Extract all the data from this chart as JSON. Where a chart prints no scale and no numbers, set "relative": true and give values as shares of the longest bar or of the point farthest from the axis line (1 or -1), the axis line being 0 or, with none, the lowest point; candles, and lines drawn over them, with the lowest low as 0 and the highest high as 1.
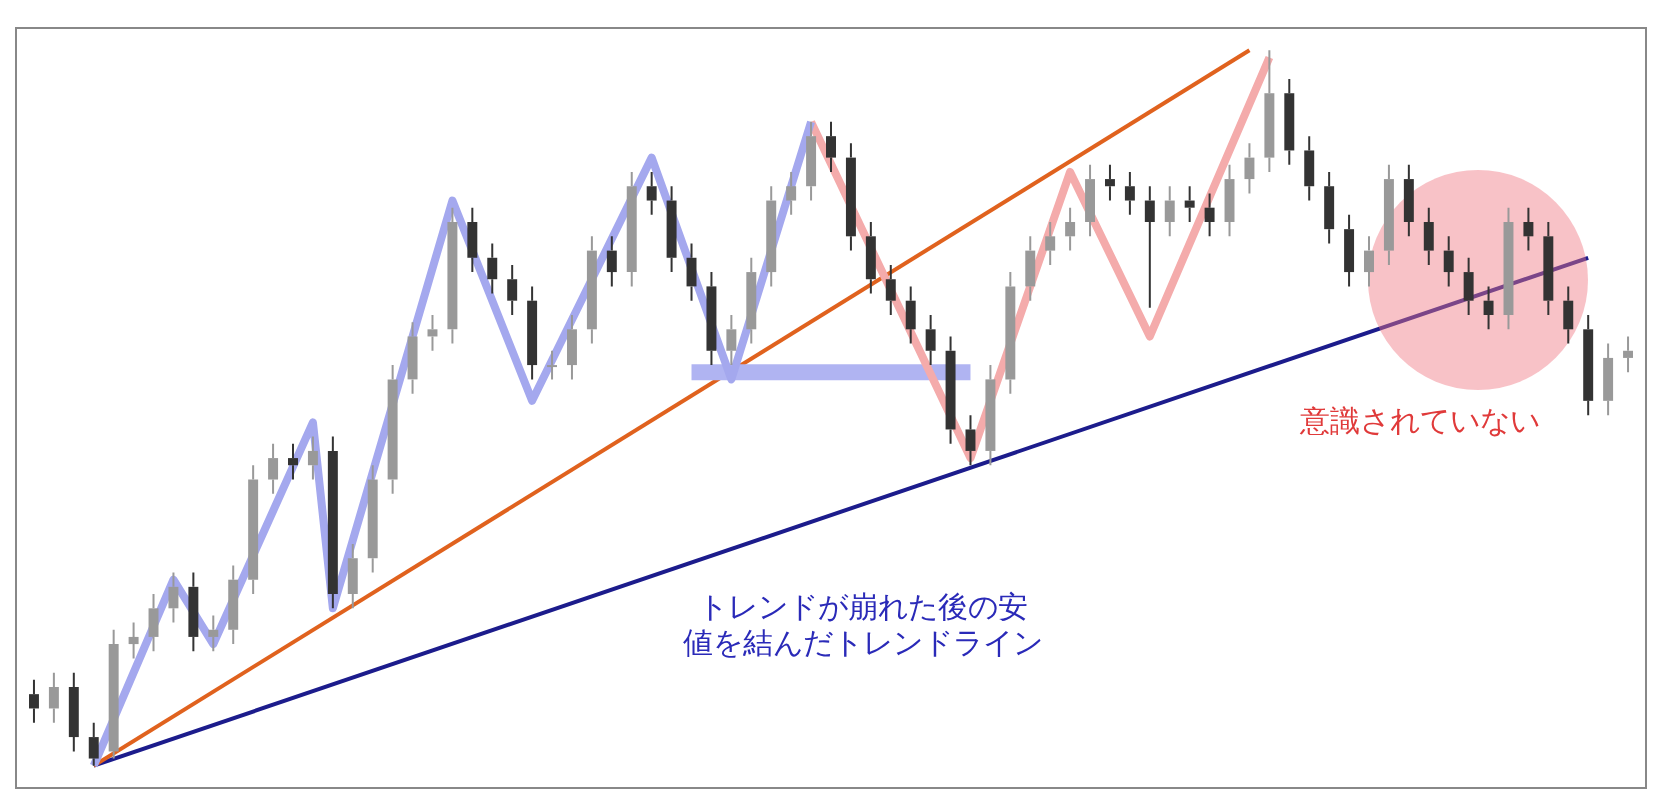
{
  "chart_data": [
    {
      "type": "candlestick",
      "relative": true,
      "tick_labels": false,
      "colors": [
        "#333333",
        "#999999",
        "#333333",
        "#333333",
        "#999999",
        "#999999",
        "#999999",
        "#999999",
        "#333333",
        "#999999",
        "#999999",
        "#999999",
        "#999999",
        "#333333",
        "#999999",
        "#333333",
        "#999999",
        "#999999",
        "#999999",
        "#999999",
        "#999999",
        "#999999",
        "#333333",
        "#333333",
        "#333333",
        "#333333",
        "#999999",
        "#999999",
        "#999999",
        "#333333",
        "#999999",
        "#333333",
        "#333333",
        "#333333",
        "#333333",
        "#999999",
        "#999999",
        "#999999",
        "#999999",
        "#999999",
        "#333333",
        "#333333",
        "#333333",
        "#333333",
        "#333333",
        "#333333",
        "#333333",
        "#333333",
        "#999999",
        "#999999",
        "#999999",
        "#999999",
        "#999999",
        "#999999",
        "#333333",
        "#333333",
        "#333333",
        "#999999",
        "#333333",
        "#333333",
        "#999999",
        "#999999",
        "#999999",
        "#333333",
        "#333333",
        "#333333",
        "#333333",
        "#999999",
        "#999999",
        "#333333",
        "#333333",
        "#333333",
        "#333333",
        "#333333",
        "#999999",
        "#333333",
        "#333333",
        "#333333",
        "#333333",
        "#999999",
        "#999999"
      ],
      "categories": [
        null,
        null,
        null,
        null,
        null,
        null,
        null,
        null,
        null,
        null,
        null,
        null,
        null,
        null,
        null,
        null,
        null,
        null,
        null,
        null,
        null,
        null,
        null,
        null,
        null,
        null,
        null,
        null,
        null,
        null,
        null,
        null,
        null,
        null,
        null,
        null,
        null,
        null,
        null,
        null,
        null,
        null,
        null,
        null,
        null,
        null,
        null,
        null,
        null,
        null,
        null,
        null,
        null,
        null,
        null,
        null,
        null,
        null,
        null,
        null,
        null,
        null,
        null,
        null,
        null,
        null,
        null,
        null,
        null,
        null,
        null,
        null,
        null,
        null,
        null,
        null,
        null,
        null,
        null,
        null,
        null
      ],
      "ohlc": [
        [
          0.1,
          0.12,
          0.06,
          0.08
        ],
        [
          0.08,
          0.13,
          0.06,
          0.11
        ],
        [
          0.11,
          0.13,
          0.02,
          0.04
        ],
        [
          0.04,
          0.06,
          0,
          0.01
        ],
        [
          0.02,
          0.19,
          0.01,
          0.17
        ],
        [
          0.17,
          0.2,
          0.15,
          0.18
        ],
        [
          0.18,
          0.24,
          0.16,
          0.22
        ],
        [
          0.22,
          0.27,
          0.2,
          0.25
        ],
        [
          0.25,
          0.27,
          0.16,
          0.18
        ],
        [
          0.18,
          0.21,
          0.16,
          0.19
        ],
        [
          0.19,
          0.28,
          0.17,
          0.26
        ],
        [
          0.26,
          0.42,
          0.24,
          0.4
        ],
        [
          0.4,
          0.45,
          0.38,
          0.43
        ],
        [
          0.43,
          0.45,
          0.4,
          0.42
        ],
        [
          0.42,
          0.46,
          0.4,
          0.44
        ],
        [
          0.44,
          0.46,
          0.22,
          0.24
        ],
        [
          0.24,
          0.31,
          0.22,
          0.29
        ],
        [
          0.29,
          0.42,
          0.27,
          0.4
        ],
        [
          0.4,
          0.56,
          0.38,
          0.54
        ],
        [
          0.54,
          0.62,
          0.52,
          0.6
        ],
        [
          0.6,
          0.63,
          0.58,
          0.61
        ],
        [
          0.61,
          0.78,
          0.59,
          0.76
        ],
        [
          0.76,
          0.78,
          0.69,
          0.71
        ],
        [
          0.71,
          0.73,
          0.66,
          0.68
        ],
        [
          0.68,
          0.7,
          0.63,
          0.65
        ],
        [
          0.65,
          0.67,
          0.54,
          0.56
        ],
        [
          0.56,
          0.58,
          0.54,
          0.56
        ],
        [
          0.56,
          0.63,
          0.54,
          0.61
        ],
        [
          0.61,
          0.74,
          0.59,
          0.72
        ],
        [
          0.72,
          0.74,
          0.67,
          0.69
        ],
        [
          0.69,
          0.83,
          0.67,
          0.81
        ],
        [
          0.81,
          0.83,
          0.77,
          0.79
        ],
        [
          0.79,
          0.81,
          0.69,
          0.71
        ],
        [
          0.71,
          0.73,
          0.65,
          0.67
        ],
        [
          0.67,
          0.69,
          0.56,
          0.58
        ],
        [
          0.58,
          0.63,
          0.56,
          0.61
        ],
        [
          0.61,
          0.71,
          0.59,
          0.69
        ],
        [
          0.69,
          0.81,
          0.67,
          0.79
        ],
        [
          0.79,
          0.83,
          0.77,
          0.81
        ],
        [
          0.81,
          0.9,
          0.79,
          0.88
        ],
        [
          0.88,
          0.9,
          0.83,
          0.85
        ],
        [
          0.85,
          0.87,
          0.72,
          0.74
        ],
        [
          0.74,
          0.76,
          0.66,
          0.68
        ],
        [
          0.68,
          0.7,
          0.63,
          0.65
        ],
        [
          0.65,
          0.67,
          0.59,
          0.61
        ],
        [
          0.61,
          0.63,
          0.56,
          0.58
        ],
        [
          0.58,
          0.6,
          0.45,
          0.47
        ],
        [
          0.47,
          0.49,
          0.42,
          0.44
        ],
        [
          0.44,
          0.56,
          0.42,
          0.54
        ],
        [
          0.54,
          0.69,
          0.52,
          0.67
        ],
        [
          0.67,
          0.74,
          0.65,
          0.72
        ],
        [
          0.72,
          0.76,
          0.7,
          0.74
        ],
        [
          0.74,
          0.78,
          0.72,
          0.76
        ],
        [
          0.76,
          0.84,
          0.74,
          0.82
        ],
        [
          0.82,
          0.84,
          0.79,
          0.81
        ],
        [
          0.81,
          0.83,
          0.77,
          0.79
        ],
        [
          0.79,
          0.81,
          0.64,
          0.76
        ],
        [
          0.76,
          0.81,
          0.74,
          0.79
        ],
        [
          0.79,
          0.81,
          0.76,
          0.78
        ],
        [
          0.78,
          0.8,
          0.74,
          0.76
        ],
        [
          0.76,
          0.84,
          0.74,
          0.82
        ],
        [
          0.82,
          0.87,
          0.8,
          0.85
        ],
        [
          0.85,
          1,
          0.83,
          0.94
        ],
        [
          0.94,
          0.96,
          0.84,
          0.86
        ],
        [
          0.86,
          0.88,
          0.79,
          0.81
        ],
        [
          0.81,
          0.83,
          0.73,
          0.75
        ],
        [
          0.75,
          0.77,
          0.67,
          0.69
        ],
        [
          0.69,
          0.74,
          0.67,
          0.72
        ],
        [
          0.72,
          0.84,
          0.7,
          0.82
        ],
        [
          0.82,
          0.84,
          0.74,
          0.76
        ],
        [
          0.76,
          0.78,
          0.7,
          0.72
        ],
        [
          0.72,
          0.74,
          0.67,
          0.69
        ],
        [
          0.69,
          0.71,
          0.63,
          0.65
        ],
        [
          0.65,
          0.67,
          0.61,
          0.63
        ],
        [
          0.63,
          0.78,
          0.61,
          0.76
        ],
        [
          0.76,
          0.78,
          0.72,
          0.74
        ],
        [
          0.74,
          0.76,
          0.63,
          0.65
        ],
        [
          0.65,
          0.67,
          0.59,
          0.61
        ],
        [
          0.61,
          0.63,
          0.49,
          0.51
        ],
        [
          0.51,
          0.59,
          0.49,
          0.57
        ],
        [
          0.57,
          0.6,
          0.55,
          0.58
        ]
      ]
    },
    {
      "type": "line",
      "relative": true,
      "tick_labels": false,
      "categories": [
        null,
        null,
        null,
        null,
        null,
        null,
        null,
        null,
        null,
        null,
        null,
        null,
        null,
        null,
        null,
        null,
        null,
        null,
        null,
        null,
        null,
        null,
        null,
        null,
        null,
        null,
        null,
        null,
        null,
        null,
        null,
        null,
        null,
        null,
        null,
        null,
        null,
        null,
        null,
        null,
        null,
        null,
        null,
        null,
        null,
        null,
        null,
        null,
        null,
        null,
        null,
        null,
        null,
        null,
        null,
        null,
        null,
        null,
        null,
        null,
        null,
        null,
        null,
        null,
        null,
        null,
        null,
        null,
        null,
        null,
        null,
        null,
        null,
        null,
        null,
        null,
        null,
        null,
        null,
        null,
        null
      ],
      "series": [
        {
          "color": "#a4a8ee",
          "values": [
            null,
            null,
            null,
            0,
            null,
            null,
            null,
            0.26,
            null,
            0.17,
            null,
            null,
            null,
            null,
            0.48,
            0.22,
            null,
            null,
            null,
            null,
            null,
            0.79,
            null,
            null,
            null,
            0.51,
            null,
            null,
            null,
            null,
            null,
            0.85,
            null,
            null,
            null,
            0.54,
            null,
            null,
            null,
            0.9,
            null,
            null,
            null,
            null,
            null,
            null,
            null,
            null,
            null,
            null,
            null,
            null,
            null,
            null,
            null,
            null,
            null,
            null,
            null,
            null,
            null,
            null,
            null,
            null,
            null,
            null,
            null,
            null,
            null,
            null,
            null,
            null,
            null,
            null,
            null,
            null,
            null,
            null,
            null,
            null,
            null
          ]
        },
        {
          "color": "#f4abab",
          "values": [
            null,
            null,
            null,
            null,
            null,
            null,
            null,
            null,
            null,
            null,
            null,
            null,
            null,
            null,
            null,
            null,
            null,
            null,
            null,
            null,
            null,
            null,
            null,
            null,
            null,
            null,
            null,
            null,
            null,
            null,
            null,
            null,
            null,
            null,
            null,
            null,
            null,
            null,
            null,
            0.9,
            null,
            null,
            null,
            null,
            null,
            null,
            null,
            0.43,
            null,
            null,
            null,
            null,
            0.83,
            null,
            null,
            null,
            0.6,
            null,
            null,
            null,
            null,
            null,
            0.99,
            null,
            null,
            null,
            null,
            null,
            null,
            null,
            null,
            null,
            null,
            null,
            null,
            null,
            null,
            null,
            null,
            null,
            null
          ]
        },
        {
          "color": "#b0b4f2",
          "values": [
            null,
            null,
            null,
            null,
            null,
            null,
            null,
            null,
            null,
            null,
            null,
            null,
            null,
            null,
            null,
            null,
            null,
            null,
            null,
            null,
            null,
            null,
            null,
            null,
            null,
            null,
            null,
            null,
            null,
            null,
            null,
            null,
            null,
            0.55,
            null,
            null,
            null,
            null,
            null,
            null,
            null,
            null,
            null,
            null,
            null,
            null,
            null,
            0.55,
            null,
            null,
            null,
            null,
            null,
            null,
            null,
            null,
            null,
            null,
            null,
            null,
            null,
            null,
            null,
            null,
            null,
            null,
            null,
            null,
            null,
            null,
            null,
            null,
            null,
            null,
            null,
            null,
            null,
            null,
            null,
            null,
            null
          ]
        },
        {
          "color": "#e0621e",
          "values": [
            null,
            null,
            null,
            0,
            null,
            null,
            null,
            null,
            null,
            null,
            null,
            null,
            null,
            null,
            null,
            null,
            null,
            null,
            null,
            null,
            null,
            null,
            null,
            null,
            null,
            null,
            null,
            null,
            null,
            null,
            null,
            null,
            null,
            null,
            null,
            null,
            null,
            null,
            null,
            null,
            null,
            null,
            null,
            null,
            null,
            null,
            null,
            null,
            null,
            null,
            null,
            null,
            null,
            null,
            null,
            null,
            null,
            null,
            null,
            null,
            null,
            1,
            null,
            null,
            null,
            null,
            null,
            null,
            null,
            null,
            null,
            null,
            null,
            null,
            null,
            null,
            null,
            null,
            null,
            null,
            null
          ]
        },
        {
          "color": "#1c1c8c",
          "values": [
            null,
            null,
            null,
            0,
            null,
            null,
            null,
            null,
            null,
            null,
            null,
            null,
            null,
            null,
            null,
            null,
            null,
            null,
            null,
            null,
            null,
            null,
            null,
            null,
            null,
            null,
            null,
            null,
            null,
            null,
            null,
            null,
            null,
            null,
            null,
            null,
            null,
            null,
            null,
            null,
            null,
            null,
            null,
            null,
            null,
            null,
            null,
            null,
            null,
            null,
            null,
            null,
            null,
            null,
            null,
            null,
            null,
            null,
            null,
            null,
            null,
            null,
            null,
            null,
            null,
            null,
            null,
            null,
            null,
            null,
            null,
            null,
            null,
            null,
            null,
            null,
            null,
            null,
            0.71,
            null,
            null
          ]
        }
      ],
      "annotations": [
        "トレンドが崩れた後の安値を結んだトレンドライン",
        "意識されていない"
      ]
    }
  ]
}
